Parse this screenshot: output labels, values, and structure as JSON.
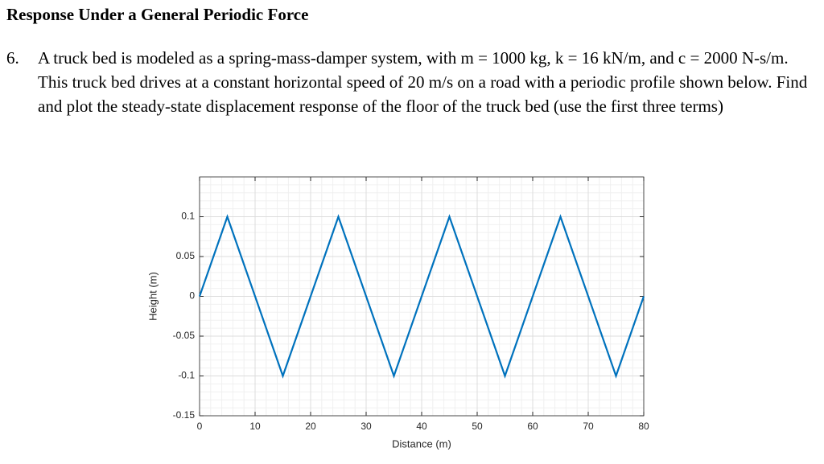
{
  "header": {
    "title": "Response Under a General Periodic Force"
  },
  "problem": {
    "number": "6.",
    "text": "A truck bed is modeled as a spring-mass-damper system, with m = 1000 kg, k = 16 kN/m, and c = 2000 N-s/m. This truck bed drives at a constant horizontal speed of 20 m/s on a road with a periodic profile shown below. Find and plot the steady-state displacement response of the floor of the truck bed (use the first three terms)"
  },
  "chart_data": {
    "type": "line",
    "x_label": "Distance (m)",
    "y_label": "Height (m)",
    "x": [
      0,
      5,
      15,
      25,
      35,
      45,
      55,
      65,
      75,
      80
    ],
    "series": [
      {
        "name": "Height",
        "color": "#0072bd",
        "values": [
          0,
          0.1,
          -0.1,
          0.1,
          -0.1,
          0.1,
          -0.1,
          0.1,
          -0.1,
          0
        ]
      }
    ],
    "xlim": [
      0,
      80
    ],
    "xticks": [
      0,
      10,
      20,
      30,
      40,
      50,
      60,
      70,
      80
    ],
    "ylim": [
      -0.15,
      0.15
    ],
    "yticks": [
      -0.15,
      -0.1,
      -0.05,
      0,
      0.05,
      0.1
    ],
    "grid": true,
    "minor_grid": true,
    "legend": false
  }
}
